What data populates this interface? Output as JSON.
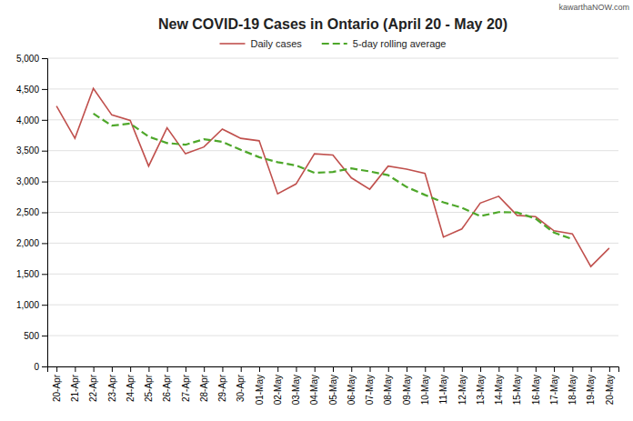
{
  "chart_data": {
    "type": "line",
    "title": "New COVID-19 Cases in Ontario (April 20 - May 20)",
    "annotations": [
      "kawarthaNOW.com"
    ],
    "categories": [
      "20-Apr",
      "21-Apr",
      "22-Apr",
      "23-Apr",
      "24-Apr",
      "25-Apr",
      "26-Apr",
      "27-Apr",
      "28-Apr",
      "29-Apr",
      "30-Apr",
      "01-May",
      "02-May",
      "03-May",
      "04-May",
      "05-May",
      "06-May",
      "07-May",
      "08-May",
      "09-May",
      "10-May",
      "11-May",
      "12-May",
      "13-May",
      "14-May",
      "15-May",
      "16-May",
      "17-May",
      "18-May",
      "19-May",
      "20-May"
    ],
    "series": [
      {
        "name": "Daily cases",
        "color": "#C0504D",
        "line_style": "solid",
        "values": [
          4225,
          3700,
          4510,
          4080,
          3990,
          3250,
          3870,
          3450,
          3560,
          3850,
          3700,
          3660,
          2800,
          2960,
          3450,
          3430,
          3060,
          2875,
          3250,
          3200,
          3130,
          2100,
          2230,
          2650,
          2760,
          2450,
          2430,
          2200,
          2150,
          1620,
          1920
        ]
      },
      {
        "name": "5-day rolling average",
        "color": "#4EA72A",
        "line_style": "dashed",
        "values": [
          null,
          null,
          4101,
          3906,
          3940,
          3728,
          3624,
          3596,
          3686,
          3644,
          3514,
          3394,
          3314,
          3260,
          3140,
          3155,
          3213,
          3163,
          3103,
          2911,
          2782,
          2662,
          2574,
          2438,
          2504,
          2498,
          2398,
          2170,
          2064,
          null,
          null
        ]
      }
    ],
    "ylim": [
      0,
      5000
    ],
    "yticks": [
      0,
      500,
      {
        "value": 1000,
        "label": "1,000"
      },
      {
        "value": 1500,
        "label": "1,500"
      },
      {
        "value": 2000,
        "label": "2,000"
      },
      {
        "value": 2500,
        "label": "2,500"
      },
      {
        "value": 3000,
        "label": "3,000"
      },
      {
        "value": 3500,
        "label": "3,500"
      },
      {
        "value": 4000,
        "label": "4,000"
      },
      {
        "value": 4500,
        "label": "4,500"
      },
      {
        "value": 5000,
        "label": "5,000"
      }
    ],
    "grid": true,
    "legend": "top"
  }
}
